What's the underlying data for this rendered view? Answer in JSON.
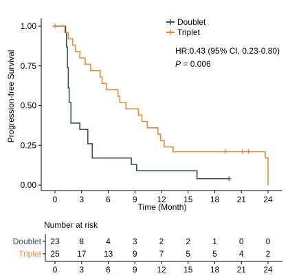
{
  "chart_data": {
    "type": "line",
    "subtype": "kaplan-meier",
    "xlabel": "Time (Month)",
    "ylabel": "Progression-free Survival",
    "x_ticks": [
      0,
      3,
      6,
      9,
      12,
      15,
      18,
      21,
      24
    ],
    "y_ticks": [
      0.0,
      0.25,
      0.5,
      0.75,
      1.0
    ],
    "y_tick_labels": [
      "0.00",
      "0.25",
      "0.50",
      "0.75",
      "1.00"
    ],
    "xlim": [
      -1,
      25
    ],
    "ylim": [
      0,
      1.05
    ],
    "grid": false,
    "legend_position": "top-right",
    "annotation": {
      "hr": "HR:0.43 (95% CI, 0.23-0.80)",
      "p_italic": "P",
      "p_rest": " = 0.006"
    },
    "series": [
      {
        "name": "Doublet",
        "color": "#37505c",
        "steps": [
          [
            0,
            1.0
          ],
          [
            1.2,
            0.96
          ],
          [
            1.3,
            0.87
          ],
          [
            1.4,
            0.74
          ],
          [
            1.5,
            0.61
          ],
          [
            1.6,
            0.52
          ],
          [
            1.8,
            0.39
          ],
          [
            2.8,
            0.35
          ],
          [
            3.7,
            0.26
          ],
          [
            4.2,
            0.17
          ],
          [
            8.6,
            0.13
          ],
          [
            9.2,
            0.09
          ],
          [
            16,
            0.04
          ],
          [
            19.6,
            0.04
          ]
        ],
        "censor": [
          [
            0,
            1.0
          ],
          [
            19.6,
            0.04
          ]
        ]
      },
      {
        "name": "Triplet",
        "color": "#ee8a35",
        "steps": [
          [
            0,
            1.0
          ],
          [
            1.1,
            0.96
          ],
          [
            1.5,
            0.92
          ],
          [
            2.0,
            0.88
          ],
          [
            2.3,
            0.84
          ],
          [
            2.8,
            0.8
          ],
          [
            3.4,
            0.76
          ],
          [
            4.0,
            0.72
          ],
          [
            5.1,
            0.68
          ],
          [
            5.3,
            0.64
          ],
          [
            5.8,
            0.6
          ],
          [
            7.1,
            0.56
          ],
          [
            7.3,
            0.52
          ],
          [
            8.0,
            0.48
          ],
          [
            9.4,
            0.44
          ],
          [
            9.8,
            0.4
          ],
          [
            10.4,
            0.36
          ],
          [
            11.6,
            0.32
          ],
          [
            11.9,
            0.28
          ],
          [
            12.3,
            0.24
          ],
          [
            13.3,
            0.21
          ],
          [
            23.7,
            0.17
          ],
          [
            24.0,
            0.0
          ]
        ],
        "censor": [
          [
            0,
            1.0
          ],
          [
            19.2,
            0.21
          ],
          [
            21.1,
            0.21
          ],
          [
            21.8,
            0.21
          ]
        ]
      }
    ],
    "risk_table": {
      "title": "Number at risk",
      "times": [
        "0",
        "3",
        "6",
        "9",
        "12",
        "15",
        "18",
        "21",
        "24"
      ],
      "rows": [
        {
          "name": "Doublet",
          "color": "#37505c",
          "values": [
            "23",
            "8",
            "4",
            "3",
            "2",
            "2",
            "1",
            "0",
            "0"
          ]
        },
        {
          "name": "Triplet",
          "color": "#ee8a35",
          "values": [
            "25",
            "17",
            "13",
            "9",
            "7",
            "5",
            "5",
            "4",
            "2"
          ]
        }
      ]
    }
  }
}
